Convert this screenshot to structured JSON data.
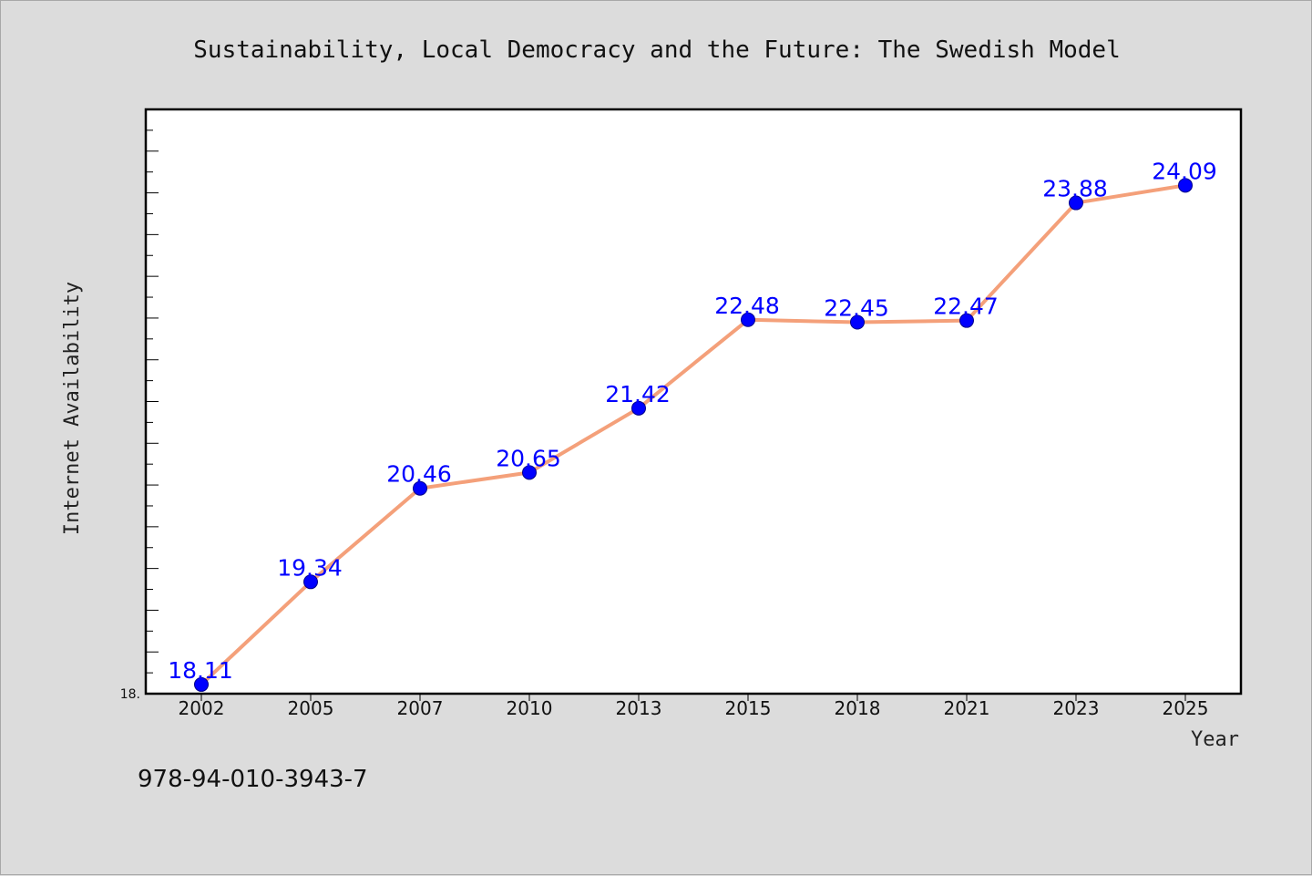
{
  "chart_data": {
    "type": "line",
    "title": "Sustainability, Local Democracy and the Future: The Swedish Model",
    "xlabel": "Year",
    "ylabel": "Internet Availability",
    "categories": [
      "2002",
      "2005",
      "2007",
      "2010",
      "2013",
      "2015",
      "2018",
      "2021",
      "2023",
      "2025"
    ],
    "series": [
      {
        "values": [
          18.11,
          19.34,
          20.46,
          20.65,
          21.42,
          22.48,
          22.45,
          22.47,
          23.88,
          24.09
        ],
        "labels": [
          "18.11",
          "19.34",
          "20.46",
          "20.65",
          "21.42",
          "22.48",
          "22.45",
          "22.47",
          "23.88",
          "24.09"
        ]
      }
    ],
    "ylim": [
      18.0,
      25.0
    ],
    "y_min_label": "18.",
    "grid": false,
    "line_color": "#f4a07a",
    "marker_color": "#0000ff"
  },
  "footer": {
    "isbn": "978-94-010-3943-7"
  }
}
